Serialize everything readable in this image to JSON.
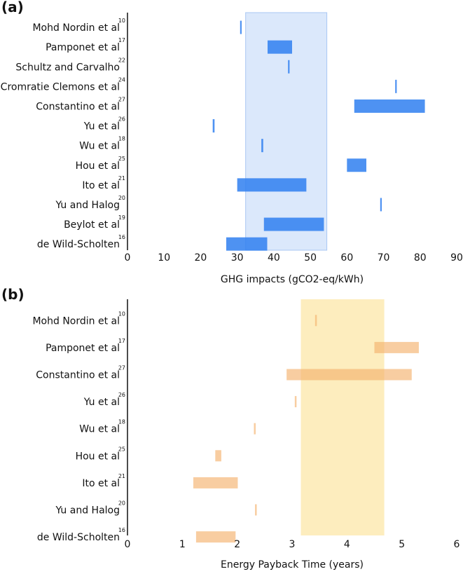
{
  "chart_data": [
    {
      "type": "bar",
      "panel_label": "(a)",
      "xlabel": "GHG impacts (gCO2-eq/kWh)",
      "xlim": [
        0,
        90
      ],
      "xticks": [
        "0",
        "10",
        "20",
        "30",
        "40",
        "50",
        "60",
        "70",
        "80",
        "90"
      ],
      "highlight_range": [
        32.3,
        54.5
      ],
      "highlight_color": "#dbe8fb",
      "bar_color": "#2f7ff0",
      "categories": [
        {
          "name": "Mohd Nordin et al",
          "ref": "10",
          "min": 30.8,
          "max": 31.2
        },
        {
          "name": "Pamponet et al",
          "ref": "17",
          "min": 38.3,
          "max": 45.0
        },
        {
          "name": "Schultz and Carvalho",
          "ref": "22",
          "min": 43.9,
          "max": 44.3
        },
        {
          "name": "Cromratie Clemons et al",
          "ref": "24",
          "min": 73.2,
          "max": 73.6
        },
        {
          "name": "Constantino et al",
          "ref": "27",
          "min": 62.0,
          "max": 81.3
        },
        {
          "name": "Yu et al",
          "ref": "26",
          "min": 23.3,
          "max": 23.8
        },
        {
          "name": "Wu et al",
          "ref": "18",
          "min": 36.6,
          "max": 37.1
        },
        {
          "name": "Hou et al",
          "ref": "25",
          "min": 60.0,
          "max": 65.3
        },
        {
          "name": "Ito et al",
          "ref": "21",
          "min": 30.0,
          "max": 48.9
        },
        {
          "name": "Yu and Halog",
          "ref": "20",
          "min": 69.1,
          "max": 69.5
        },
        {
          "name": "Beylot et al",
          "ref": "19",
          "min": 37.3,
          "max": 53.7
        },
        {
          "name": "de Wild-Scholten",
          "ref": "16",
          "min": 27.0,
          "max": 38.2
        }
      ]
    },
    {
      "type": "bar",
      "panel_label": "(b)",
      "xlabel": "Energy Payback Time (years)",
      "xlim": [
        0,
        6
      ],
      "xticks": [
        "0",
        "1",
        "2",
        "3",
        "4",
        "5",
        "6"
      ],
      "highlight_range": [
        3.16,
        4.68
      ],
      "highlight_color": "#fdedbe",
      "bar_color": "#f5b26f",
      "categories": [
        {
          "name": "Mohd Nordin et al",
          "ref": "10",
          "min": 3.42,
          "max": 3.45
        },
        {
          "name": "Pamponet et al",
          "ref": "17",
          "min": 4.5,
          "max": 5.31
        },
        {
          "name": "Constantino et al",
          "ref": "27",
          "min": 2.9,
          "max": 5.18
        },
        {
          "name": "Yu et al",
          "ref": "26",
          "min": 3.05,
          "max": 3.08
        },
        {
          "name": "Wu et al",
          "ref": "18",
          "min": 2.31,
          "max": 2.33
        },
        {
          "name": "Hou et al",
          "ref": "25",
          "min": 1.6,
          "max": 1.71
        },
        {
          "name": "Ito et al",
          "ref": "21",
          "min": 1.2,
          "max": 2.01
        },
        {
          "name": "Yu and Halog",
          "ref": "20",
          "min": 2.33,
          "max": 2.35
        },
        {
          "name": "de Wild-Scholten",
          "ref": "16",
          "min": 1.25,
          "max": 1.97
        }
      ]
    }
  ]
}
